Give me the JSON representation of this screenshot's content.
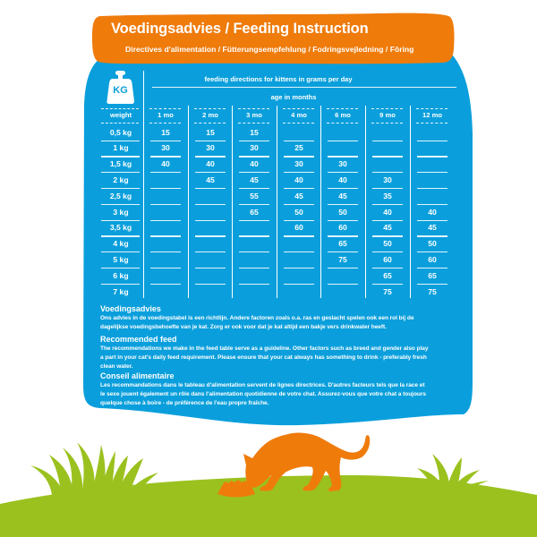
{
  "header": {
    "title": "Voedingsadvies / Feeding Instruction",
    "subtitle": "Directives d'alimentation / Fütterungsempfehlung / Fodringsvejledning / Fôring"
  },
  "colors": {
    "panel_blue": "#0a9fdc",
    "banner_orange": "#ef7b0b",
    "grass_green": "#9bc11f",
    "text": "#ffffff"
  },
  "table": {
    "icon": "kg-weight-icon",
    "icon_label": "KG",
    "caption": "feeding directions for kittens in grams per day",
    "age_caption": "age in months",
    "weight_header": "weight",
    "columns": [
      "1 mo",
      "2 mo",
      "3 mo",
      "4 mo",
      "6 mo",
      "9 mo",
      "12 mo"
    ],
    "rows": [
      {
        "weight": "0,5 kg",
        "values": [
          "15",
          "15",
          "15",
          "",
          "",
          "",
          ""
        ]
      },
      {
        "weight": "1 kg",
        "values": [
          "30",
          "30",
          "30",
          "25",
          "",
          "",
          ""
        ]
      },
      {
        "weight": "1,5 kg",
        "values": [
          "40",
          "40",
          "40",
          "30",
          "30",
          "",
          ""
        ]
      },
      {
        "weight": "2 kg",
        "values": [
          "",
          "45",
          "45",
          "40",
          "40",
          "30",
          ""
        ]
      },
      {
        "weight": "2,5 kg",
        "values": [
          "",
          "",
          "55",
          "45",
          "45",
          "35",
          ""
        ]
      },
      {
        "weight": "3 kg",
        "values": [
          "",
          "",
          "65",
          "50",
          "50",
          "40",
          "40"
        ]
      },
      {
        "weight": "3,5 kg",
        "values": [
          "",
          "",
          "",
          "60",
          "60",
          "45",
          "45"
        ]
      },
      {
        "weight": "4 kg",
        "values": [
          "",
          "",
          "",
          "",
          "65",
          "50",
          "50"
        ]
      },
      {
        "weight": "5 kg",
        "values": [
          "",
          "",
          "",
          "",
          "75",
          "60",
          "60"
        ]
      },
      {
        "weight": "6 kg",
        "values": [
          "",
          "",
          "",
          "",
          "",
          "65",
          "65"
        ]
      },
      {
        "weight": "7 kg",
        "values": [
          "",
          "",
          "",
          "",
          "",
          "75",
          "75"
        ]
      }
    ]
  },
  "notes": [
    {
      "heading": "Voedingsadvies",
      "lines": [
        "Ons advies in de voedingstabel is een richtlijn. Andere factoren zoals o.a. ras en geslacht spelen ook een rol bij de",
        "dagelijkse voedingsbehoefte van je kat. Zorg er ook voor dat je kat altijd een bakje vers drinkwater heeft."
      ]
    },
    {
      "heading": "Recommended feed",
      "lines": [
        "The recommendations we make in the feed table serve as a guideline. Other factors such as breed and gender also play",
        "a part in your cat's daily feed requirement. Please ensure that your cat always has something to drink - preferably fresh",
        "clean water."
      ]
    },
    {
      "heading": "Conseil alimentaire",
      "lines": [
        "Les recommandations dans le tableau d'alimentation servent de lignes directrices. D'autres facteurs tels que la race et",
        "le sexe jouent également un rôle dans l'alimentation quotidienne de votre chat. Assurez-vous que votre chat a toujours",
        "quelque chose à boire - de préférence de l'eau propre fraîche."
      ]
    }
  ],
  "illustration": {
    "subject": "cat-eating-from-bowl-icon",
    "scenery": "grass-hill-icon"
  }
}
